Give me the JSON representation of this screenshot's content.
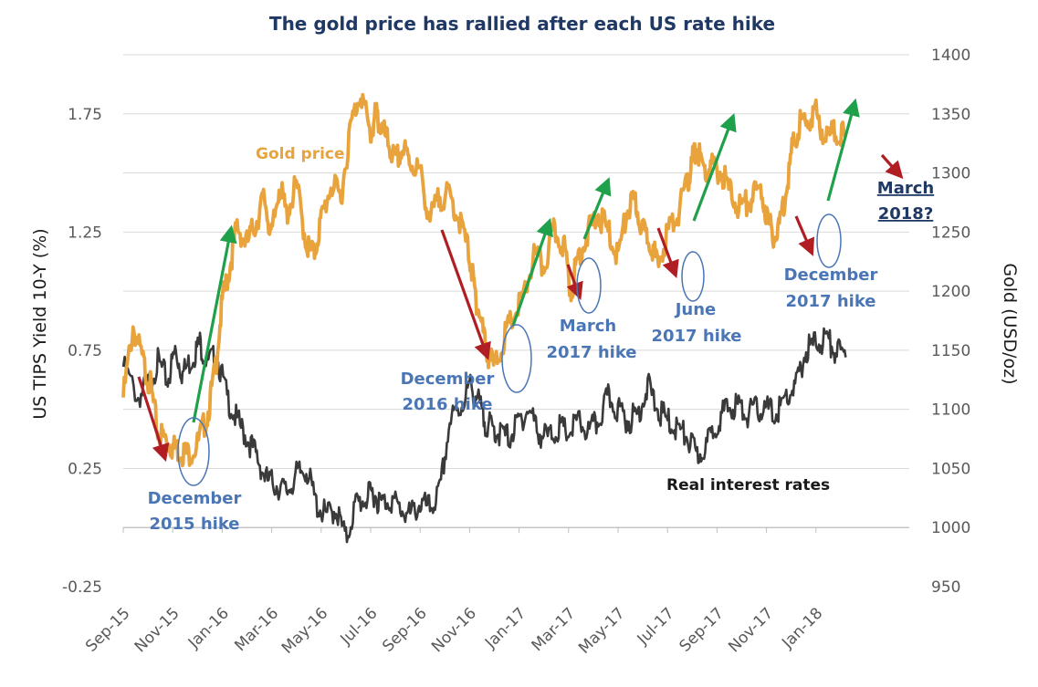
{
  "colors": {
    "gold": "#E8A33D",
    "rates": "#3A3A3A",
    "up_arrow": "#1FA04A",
    "down_arrow": "#B01E23",
    "hike_text": "#4A76B5",
    "hike_circle": "#4A76B5",
    "title_text": "#1F3864",
    "grid": "#D9D9D9",
    "tick_text": "#595959"
  },
  "chart_data": {
    "type": "line",
    "title": "The gold price has rallied after each US rate hike",
    "xlabel": "",
    "ylabel_left": "US TIPS Yield 10-Y (%)",
    "ylabel_right": "Gold (USD/oz)",
    "x_tick_labels": [
      "Sep-15",
      "Nov-15",
      "Jan-16",
      "Mar-16",
      "May-16",
      "Jul-16",
      "Sep-16",
      "Nov-16",
      "Jan-17",
      "Mar-17",
      "May-17",
      "Jul-17",
      "Sep-17",
      "Nov-17",
      "Jan-18"
    ],
    "ylim_left": [
      -0.25,
      2.0
    ],
    "ylim_right": [
      950,
      1400
    ],
    "left_ticks": [
      {
        "value": -0.25,
        "label": "-0.25"
      },
      {
        "value": 0.25,
        "label": "0.25"
      },
      {
        "value": 0.75,
        "label": "0.75"
      },
      {
        "value": 1.25,
        "label": "1.25"
      },
      {
        "value": 1.75,
        "label": "1.75"
      }
    ],
    "right_ticks": [
      {
        "value": 950,
        "label": "950"
      },
      {
        "value": 1000,
        "label": "1000"
      },
      {
        "value": 1050,
        "label": "1050"
      },
      {
        "value": 1100,
        "label": "1100"
      },
      {
        "value": 1150,
        "label": "1150"
      },
      {
        "value": 1200,
        "label": "1200"
      },
      {
        "value": 1250,
        "label": "1250"
      },
      {
        "value": 1300,
        "label": "1300"
      },
      {
        "value": 1350,
        "label": "1350"
      },
      {
        "value": 1400,
        "label": "1400"
      }
    ],
    "grid": true,
    "series": [
      {
        "name": "Gold price",
        "axis": "right",
        "x": [
          0,
          0.2,
          0.4,
          0.55,
          0.7,
          0.85,
          1.0,
          1.15,
          1.3,
          1.5,
          1.7,
          1.85,
          2.0,
          2.15,
          2.3,
          2.5,
          2.7,
          2.85,
          3.0,
          3.15,
          3.3,
          3.5,
          3.7,
          3.85,
          4.0,
          4.2,
          4.4,
          4.6,
          4.8,
          5.0,
          5.1,
          5.2,
          5.35,
          5.5,
          5.65,
          5.8,
          6.0,
          6.2,
          6.4,
          6.6,
          6.8,
          7.0,
          7.1,
          7.2,
          7.35,
          7.5,
          7.7,
          7.9,
          8.1,
          8.3,
          8.5,
          8.7,
          8.9,
          9.05,
          9.2,
          9.4,
          9.6,
          9.8,
          10.0,
          10.2,
          10.35,
          10.5,
          10.65,
          10.8,
          11.0,
          11.2,
          11.4,
          11.5,
          11.6,
          11.75,
          11.9,
          12.1,
          12.3,
          12.5,
          12.7,
          12.9,
          13.05,
          13.2,
          13.35,
          13.5,
          13.65,
          13.8,
          14.0,
          14.2,
          14.4,
          14.6
        ],
        "values": [
          1110,
          1170,
          1140,
          1120,
          1080,
          1075,
          1068,
          1065,
          1062,
          1070,
          1095,
          1130,
          1190,
          1220,
          1255,
          1240,
          1260,
          1280,
          1245,
          1290,
          1265,
          1290,
          1240,
          1230,
          1260,
          1290,
          1280,
          1340,
          1370,
          1330,
          1350,
          1340,
          1325,
          1310,
          1320,
          1310,
          1300,
          1260,
          1280,
          1280,
          1260,
          1230,
          1200,
          1180,
          1150,
          1135,
          1160,
          1180,
          1195,
          1230,
          1220,
          1250,
          1240,
          1200,
          1230,
          1250,
          1265,
          1250,
          1230,
          1270,
          1275,
          1250,
          1245,
          1220,
          1250,
          1265,
          1290,
          1310,
          1320,
          1300,
          1305,
          1300,
          1280,
          1270,
          1280,
          1285,
          1255,
          1245,
          1275,
          1315,
          1340,
          1345,
          1350,
          1330,
          1335,
          1330
        ]
      },
      {
        "name": "Real interest rates",
        "axis": "left",
        "x": [
          0,
          0.3,
          0.5,
          0.7,
          0.9,
          1.05,
          1.2,
          1.4,
          1.55,
          1.7,
          1.9,
          2.1,
          2.3,
          2.5,
          2.7,
          2.9,
          3.1,
          3.3,
          3.5,
          3.7,
          3.9,
          4.1,
          4.3,
          4.5,
          4.7,
          4.9,
          5.05,
          5.2,
          5.4,
          5.6,
          5.8,
          6.0,
          6.2,
          6.4,
          6.6,
          6.8,
          7.0,
          7.15,
          7.3,
          7.45,
          7.6,
          7.8,
          8.0,
          8.2,
          8.4,
          8.6,
          8.8,
          9.0,
          9.2,
          9.4,
          9.6,
          9.8,
          10.0,
          10.2,
          10.4,
          10.6,
          10.8,
          11.0,
          11.2,
          11.4,
          11.6,
          11.8,
          12.0,
          12.2,
          12.4,
          12.6,
          12.8,
          13.0,
          13.2,
          13.4,
          13.6,
          13.8,
          14.0,
          14.2,
          14.4,
          14.6
        ],
        "values": [
          0.68,
          0.55,
          0.6,
          0.7,
          0.62,
          0.75,
          0.65,
          0.72,
          0.78,
          0.7,
          0.72,
          0.55,
          0.45,
          0.38,
          0.3,
          0.2,
          0.18,
          0.15,
          0.22,
          0.25,
          0.1,
          0.05,
          0.08,
          -0.05,
          0.1,
          0.12,
          0.15,
          0.1,
          0.12,
          0.08,
          0.05,
          0.1,
          0.08,
          0.15,
          0.45,
          0.5,
          0.6,
          0.55,
          0.45,
          0.42,
          0.4,
          0.38,
          0.45,
          0.5,
          0.4,
          0.38,
          0.42,
          0.4,
          0.45,
          0.4,
          0.45,
          0.55,
          0.5,
          0.45,
          0.48,
          0.6,
          0.5,
          0.45,
          0.42,
          0.38,
          0.3,
          0.35,
          0.45,
          0.5,
          0.52,
          0.48,
          0.5,
          0.5,
          0.48,
          0.55,
          0.6,
          0.75,
          0.78,
          0.8,
          0.75,
          0.72
        ]
      }
    ],
    "series_labels": {
      "gold": "Gold price",
      "rates": "Real interest rates"
    },
    "annotations": [
      {
        "id": "dec15",
        "lines": [
          "December",
          "2015 hike"
        ]
      },
      {
        "id": "dec16",
        "lines": [
          "December",
          "2016 hike"
        ]
      },
      {
        "id": "mar17",
        "lines": [
          "March",
          "2017 hike"
        ]
      },
      {
        "id": "jun17",
        "lines": [
          "June",
          "2017 hike"
        ]
      },
      {
        "id": "dec17",
        "lines": [
          "December",
          "2017 hike"
        ]
      },
      {
        "id": "mar18",
        "lines": [
          "March",
          "2018?"
        ]
      }
    ]
  }
}
